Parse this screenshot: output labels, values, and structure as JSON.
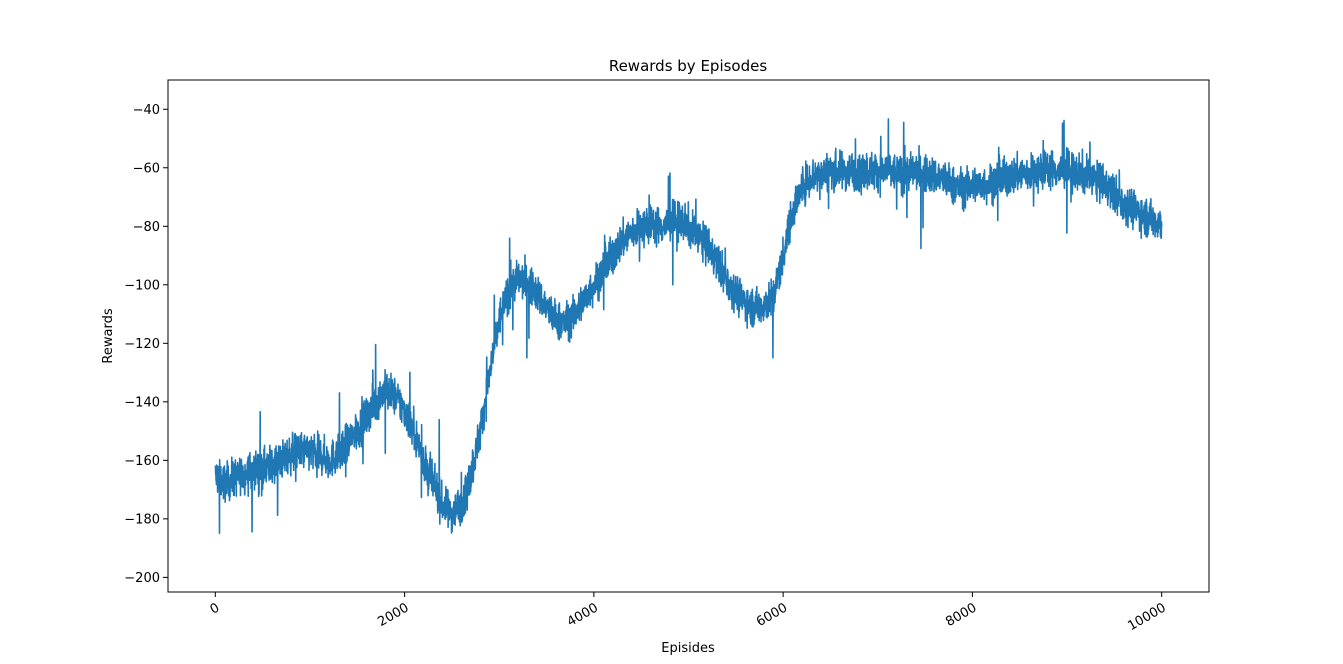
{
  "chart_data": {
    "type": "line",
    "title": "Rewards by Episodes",
    "xlabel": "Episides",
    "ylabel": "Rewards",
    "xlim": [
      -500,
      10500
    ],
    "ylim": [
      -205,
      -30
    ],
    "xticks": [
      0,
      2000,
      4000,
      6000,
      8000,
      10000
    ],
    "yticks": [
      -200,
      -180,
      -160,
      -140,
      -120,
      -100,
      -80,
      -60,
      -40
    ],
    "grid": false,
    "legend": "none",
    "series": [
      {
        "color": "#1f77b4",
        "x": [
          0,
          100,
          200,
          300,
          400,
          500,
          600,
          700,
          800,
          900,
          1000,
          1100,
          1200,
          1300,
          1400,
          1500,
          1600,
          1700,
          1800,
          1900,
          2000,
          2100,
          2200,
          2300,
          2400,
          2500,
          2600,
          2700,
          2800,
          2900,
          3000,
          3100,
          3200,
          3300,
          3400,
          3500,
          3600,
          3700,
          3800,
          3900,
          4000,
          4100,
          4200,
          4300,
          4400,
          4500,
          4600,
          4700,
          4800,
          4900,
          5000,
          5100,
          5200,
          5300,
          5400,
          5500,
          5600,
          5700,
          5800,
          5900,
          6000,
          6100,
          6200,
          6300,
          6400,
          6500,
          6600,
          6700,
          6800,
          6900,
          7000,
          7100,
          7200,
          7300,
          7400,
          7500,
          7600,
          7700,
          7800,
          7900,
          8000,
          8100,
          8200,
          8300,
          8400,
          8500,
          8600,
          8700,
          8800,
          8900,
          9000,
          9100,
          9200,
          9300,
          9400,
          9500,
          9600,
          9700,
          9800,
          9900,
          10000
        ],
        "y": [
          -165,
          -168,
          -166,
          -165,
          -163,
          -163,
          -161,
          -160,
          -158,
          -157,
          -157,
          -158,
          -160,
          -158,
          -154,
          -150,
          -145,
          -140,
          -136,
          -138,
          -143,
          -150,
          -160,
          -168,
          -175,
          -178,
          -175,
          -165,
          -150,
          -130,
          -112,
          -102,
          -98,
          -99,
          -103,
          -108,
          -112,
          -113,
          -110,
          -105,
          -100,
          -95,
          -90,
          -85,
          -82,
          -80,
          -79,
          -80,
          -79,
          -78,
          -80,
          -83,
          -87,
          -92,
          -98,
          -103,
          -106,
          -108,
          -107,
          -104,
          -90,
          -75,
          -66,
          -63,
          -62,
          -61,
          -61,
          -61,
          -61,
          -61,
          -61,
          -61,
          -62,
          -62,
          -61,
          -62,
          -63,
          -64,
          -66,
          -67,
          -66,
          -66,
          -65,
          -64,
          -63,
          -62,
          -62,
          -61,
          -60,
          -61,
          -61,
          -62,
          -62,
          -64,
          -66,
          -69,
          -72,
          -74,
          -76,
          -78,
          -79
        ],
        "noisy": true
      }
    ]
  }
}
